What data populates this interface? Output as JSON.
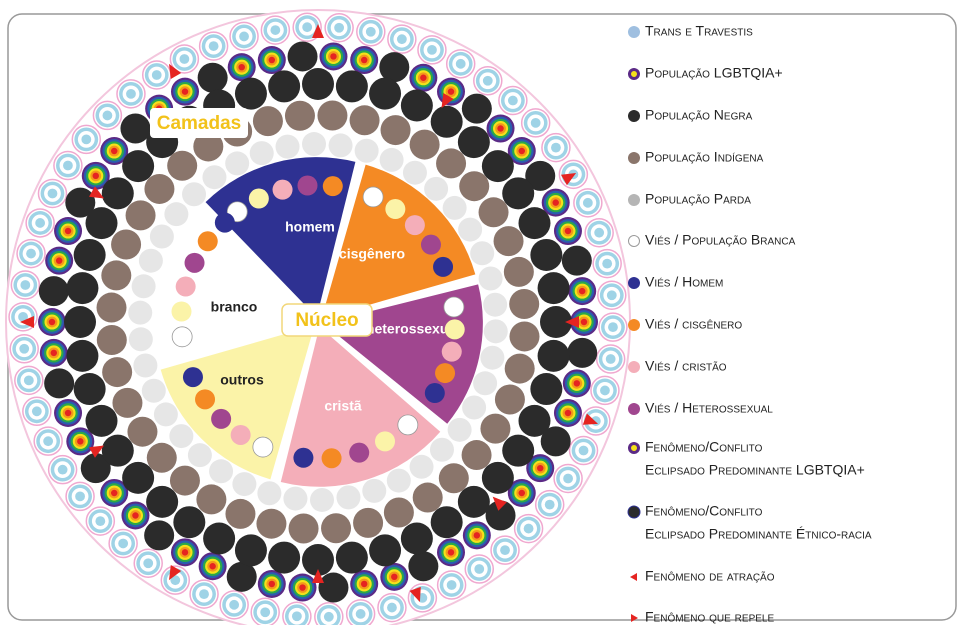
{
  "labels": {
    "camadas": "Camadas",
    "nucleo": "Núcleo"
  },
  "slices": [
    {
      "label": "homem"
    },
    {
      "label": "cisgênero"
    },
    {
      "label": "heterossexual"
    },
    {
      "label": "cristã"
    },
    {
      "label": "outros"
    },
    {
      "label": "branco"
    }
  ],
  "legend": [
    {
      "lines": [
        "Trans e Travestis"
      ]
    },
    {
      "lines": [
        "População LGBTQIA+"
      ]
    },
    {
      "lines": [
        "População Negra"
      ]
    },
    {
      "lines": [
        "População Indígena"
      ]
    },
    {
      "lines": [
        "População Parda"
      ]
    },
    {
      "lines": [
        "Viés / População Branca"
      ]
    },
    {
      "lines": [
        "Viés / Homem"
      ]
    },
    {
      "lines": [
        "Viés / cisgênero"
      ]
    },
    {
      "lines": [
        "Viés / cristão"
      ]
    },
    {
      "lines": [
        "Viés / Heterossexual"
      ]
    },
    {
      "lines": [
        "Fenômeno/Conflito",
        "Eclipsado Predominante LGBTQIA+"
      ]
    },
    {
      "lines": [
        "Fenômeno/Conflito",
        "Eclipsado Predominante Étnico-racia"
      ]
    },
    {
      "lines": [
        "Fenômeno de atração"
      ]
    },
    {
      "lines": [
        "Fenômeno que repele"
      ]
    }
  ]
}
